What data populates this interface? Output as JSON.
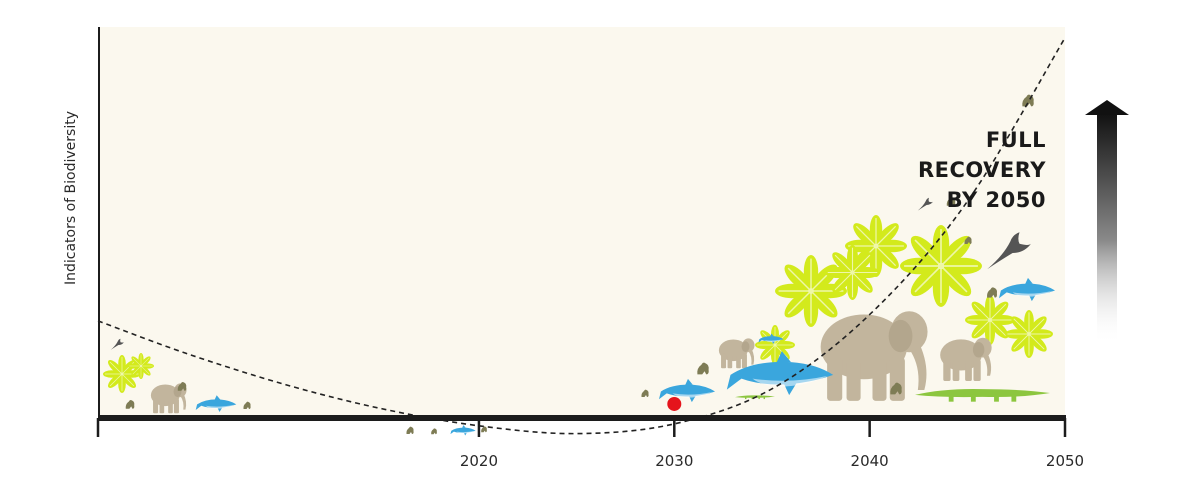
{
  "chart_data": {
    "type": "line",
    "ylabel": "Indicators of Biodiversity",
    "xlim": [
      2000.5,
      2050
    ],
    "ylim": [
      0,
      100
    ],
    "x_ticks": [
      2020,
      2030,
      2040,
      2050
    ],
    "x_tick_labels": [
      "2020",
      "2030",
      "2040",
      "2050"
    ],
    "series": [
      {
        "x": [
          2000.5,
          2005,
          2010,
          2015,
          2020,
          2025,
          2030,
          2035,
          2040,
          2045,
          2050
        ],
        "values": [
          24.9,
          16.6,
          8.7,
          2.4,
          -2.0,
          -4.0,
          -1.5,
          7.5,
          26.5,
          55.5,
          97.5
        ]
      }
    ],
    "marker": {
      "x": 2030,
      "y": 3.6
    },
    "annotations": [
      "FULL",
      "RECOVERY",
      "BY 2050"
    ],
    "grid": false,
    "colors": {
      "panel": "#fbf8ee",
      "curve": "#222222",
      "marker": "#e5141c",
      "axis": "#1c1c1c",
      "leaf": "#d3ea1c",
      "elephant": "#c2b59d",
      "shark": "#3aa6dd",
      "crocodile": "#8cc63f",
      "bird": "#555555"
    },
    "icons": [
      "elephant-icon",
      "shark-icon",
      "leaf-cluster-icon",
      "crocodile-icon",
      "bird-icon",
      "frog-icon",
      "up-arrow-icon"
    ]
  }
}
